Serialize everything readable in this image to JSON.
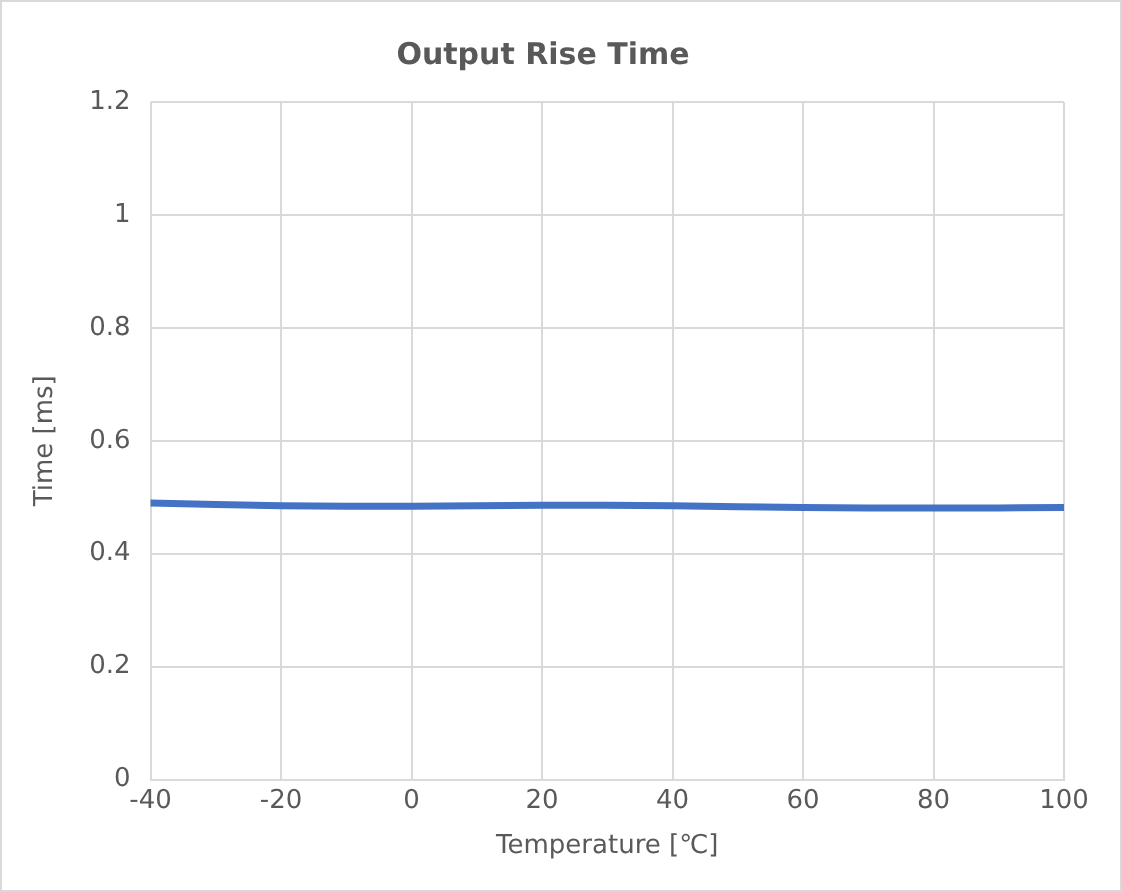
{
  "chart_data": {
    "type": "line",
    "title": "Output Rise Time",
    "xlabel": "Temperature [℃]",
    "ylabel": "Time [ms]",
    "x": [
      -40,
      -30,
      -20,
      -10,
      0,
      10,
      20,
      30,
      40,
      50,
      60,
      70,
      80,
      90,
      100
    ],
    "series": [
      {
        "color": "#4472c4",
        "values": [
          0.49,
          0.487,
          0.485,
          0.484,
          0.484,
          0.485,
          0.486,
          0.486,
          0.485,
          0.483,
          0.482,
          0.481,
          0.481,
          0.481,
          0.482
        ]
      }
    ],
    "xlim": [
      -40,
      100
    ],
    "xticks": [
      -40,
      -20,
      0,
      20,
      40,
      60,
      80,
      100
    ],
    "ylim": [
      0,
      1.2
    ],
    "yticks": [
      0,
      0.2,
      0.4,
      0.6,
      0.8,
      1,
      1.2
    ],
    "grid": true,
    "legend": false,
    "marker": "none",
    "line_style": "solid"
  }
}
